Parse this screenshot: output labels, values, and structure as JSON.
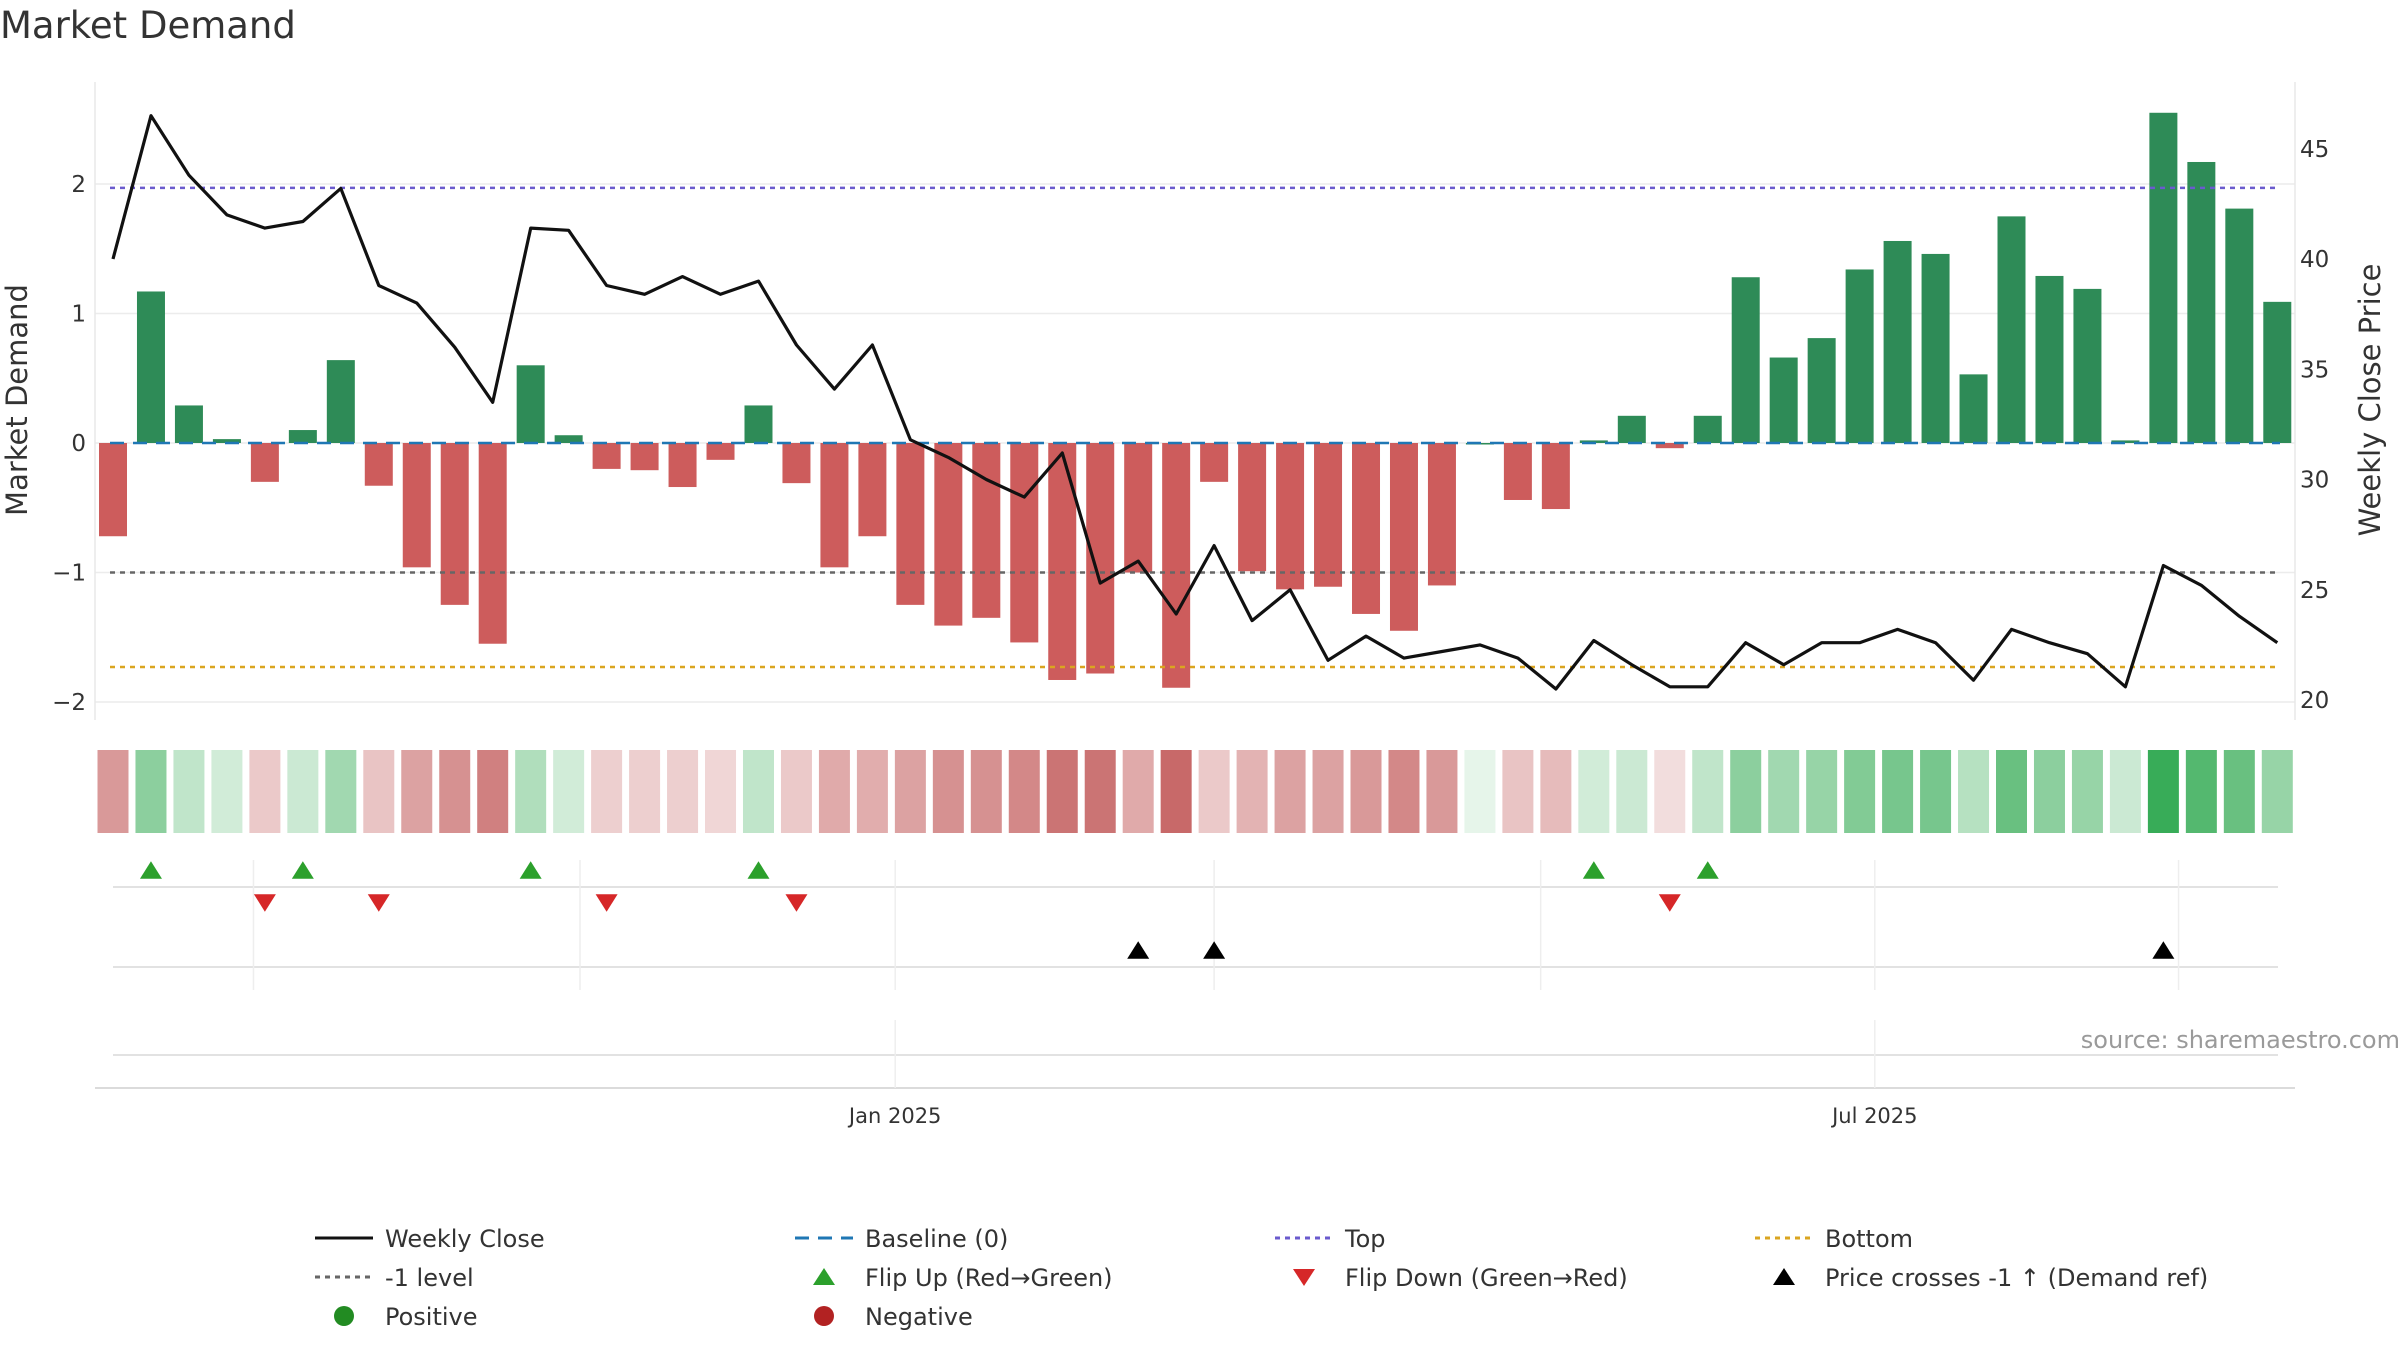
{
  "chart_data": {
    "type": "bar",
    "title": "Market Demand",
    "ylabel_left": "Market Demand",
    "ylabel_right": "Weekly Close Price",
    "source": "source: sharemaestro.com",
    "left_axis": {
      "ylim": [
        -2.2,
        2.85
      ],
      "ticks": [
        2,
        1,
        0,
        -1,
        -2
      ],
      "tick_labels": [
        "2",
        "1",
        "0",
        "−1",
        "−2"
      ]
    },
    "right_axis": {
      "ylim": [
        19.2,
        47.8
      ],
      "ticks": [
        45,
        40,
        35,
        30,
        25,
        20
      ],
      "tick_labels": [
        "45",
        "40",
        "35",
        "30",
        "25",
        "20"
      ]
    },
    "reference_lines": {
      "top": 1.97,
      "bottom": -1.73,
      "minus_one": -1,
      "baseline": 0
    },
    "date_labels": [
      {
        "week": 20.6,
        "label": "Jan 2025"
      },
      {
        "week": 46.4,
        "label": "Jul 2025"
      }
    ],
    "colors": {
      "positive": "#2e8b57",
      "negative": "#cd5c5c",
      "price": "#111111",
      "baseline": "#1f77b4",
      "top": "#6a5acd",
      "bottom": "#daa520",
      "minus_one": "#666666",
      "flip_up": "#2ca02c",
      "flip_down": "#d62728",
      "cross": "#000000",
      "positive_dot": "#228b22",
      "negative_dot": "#b22222"
    },
    "demand": [
      -0.72,
      1.17,
      0.29,
      0.03,
      -0.3,
      0.1,
      0.64,
      -0.33,
      -0.96,
      -1.25,
      -1.55,
      0.6,
      0.06,
      -0.2,
      -0.21,
      -0.34,
      -0.13,
      0.29,
      -0.31,
      -0.96,
      -0.72,
      -1.25,
      -1.41,
      -1.35,
      -1.54,
      -1.83,
      -1.78,
      -1.0,
      -1.89,
      -0.3,
      -0.99,
      -1.13,
      -1.11,
      -1.32,
      -1.45,
      -1.1,
      0.0,
      -0.44,
      -0.51,
      0.02,
      0.21,
      -0.04,
      0.21,
      1.28,
      0.66,
      0.81,
      1.34,
      1.56,
      1.46,
      0.53,
      1.75,
      1.29,
      1.19,
      0.02,
      2.55,
      2.17,
      1.81,
      1.09
    ],
    "price": [
      40.0,
      46.5,
      43.8,
      42.0,
      41.4,
      41.7,
      43.2,
      38.8,
      38.0,
      36.0,
      33.5,
      41.4,
      41.3,
      38.8,
      38.4,
      39.2,
      38.4,
      39.0,
      36.1,
      34.1,
      36.1,
      31.8,
      31.0,
      30.0,
      29.2,
      31.2,
      25.3,
      26.3,
      23.9,
      27.0,
      23.6,
      25.0,
      21.8,
      22.9,
      21.9,
      22.2,
      22.5,
      21.9,
      20.5,
      22.7,
      21.6,
      20.6,
      20.6,
      22.6,
      21.6,
      22.6,
      22.6,
      23.2,
      22.6,
      20.9,
      23.2,
      22.6,
      22.1,
      20.6,
      26.1,
      25.2,
      23.8,
      22.6
    ],
    "heat_intensity": [
      0.6,
      0.55,
      0.3,
      0.22,
      0.32,
      0.25,
      0.45,
      0.35,
      0.55,
      0.65,
      0.75,
      0.38,
      0.22,
      0.28,
      0.28,
      0.28,
      0.24,
      0.3,
      0.32,
      0.5,
      0.48,
      0.55,
      0.65,
      0.65,
      0.7,
      0.82,
      0.82,
      0.5,
      0.88,
      0.32,
      0.45,
      0.55,
      0.55,
      0.6,
      0.7,
      0.6,
      0.12,
      0.35,
      0.4,
      0.22,
      0.25,
      0.2,
      0.3,
      0.55,
      0.45,
      0.5,
      0.6,
      0.65,
      0.65,
      0.35,
      0.72,
      0.55,
      0.5,
      0.25,
      0.95,
      0.82,
      0.72,
      0.5
    ],
    "flip_up_weeks": [
      1,
      5,
      11,
      17,
      39,
      42
    ],
    "flip_down_weeks": [
      4,
      7,
      13,
      18,
      41
    ],
    "cross_weeks": [
      27,
      29,
      54
    ],
    "legend": [
      {
        "key": "price",
        "label": "Weekly Close",
        "symbol": "solid",
        "color": "#111111"
      },
      {
        "key": "baseline",
        "label": "Baseline (0)",
        "symbol": "dashed",
        "color": "#1f77b4"
      },
      {
        "key": "top",
        "label": "Top",
        "symbol": "dotted",
        "color": "#6a5acd"
      },
      {
        "key": "bottom",
        "label": "Bottom",
        "symbol": "dotted",
        "color": "#daa520"
      },
      {
        "key": "minus_one",
        "label": "-1 level",
        "symbol": "dotted",
        "color": "#666666"
      },
      {
        "key": "flip_up",
        "label": "Flip Up (Red→Green)",
        "symbol": "tri-up",
        "color": "#2ca02c"
      },
      {
        "key": "flip_down",
        "label": "Flip Down (Green→Red)",
        "symbol": "tri-down",
        "color": "#d62728"
      },
      {
        "key": "cross",
        "label": "Price crosses -1 ↑ (Demand ref)",
        "symbol": "tri-up",
        "color": "#000000"
      },
      {
        "key": "positive",
        "label": "Positive",
        "symbol": "dot",
        "color": "#228b22"
      },
      {
        "key": "negative",
        "label": "Negative",
        "symbol": "dot",
        "color": "#b22222"
      }
    ]
  }
}
